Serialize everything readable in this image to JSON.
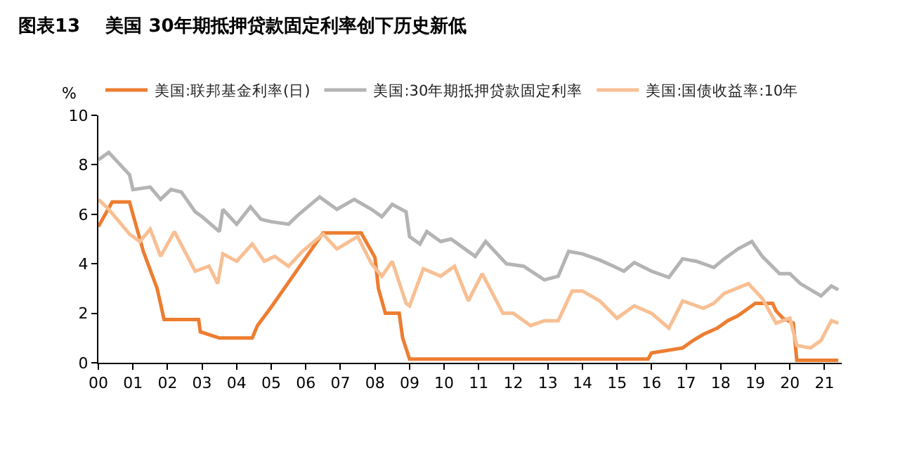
{
  "chart_data": {
    "type": "line",
    "title": "图表13    美国 30年期抵押贷款固定利率创下历史新低",
    "ylabel": "%",
    "ylim": [
      0,
      10
    ],
    "yticks": [
      0,
      2,
      4,
      6,
      8,
      10
    ],
    "xlim": [
      2000,
      2021.5
    ],
    "xticks": [
      {
        "value": 2000,
        "label": "00"
      },
      {
        "value": 2001,
        "label": "01"
      },
      {
        "value": 2002,
        "label": "02"
      },
      {
        "value": 2003,
        "label": "03"
      },
      {
        "value": 2004,
        "label": "04"
      },
      {
        "value": 2005,
        "label": "05"
      },
      {
        "value": 2006,
        "label": "06"
      },
      {
        "value": 2007,
        "label": "07"
      },
      {
        "value": 2008,
        "label": "08"
      },
      {
        "value": 2009,
        "label": "09"
      },
      {
        "value": 2010,
        "label": "10"
      },
      {
        "value": 2011,
        "label": "11"
      },
      {
        "value": 2012,
        "label": "12"
      },
      {
        "value": 2013,
        "label": "13"
      },
      {
        "value": 2014,
        "label": "14"
      },
      {
        "value": 2015,
        "label": "15"
      },
      {
        "value": 2016,
        "label": "16"
      },
      {
        "value": 2017,
        "label": "17"
      },
      {
        "value": 2018,
        "label": "18"
      },
      {
        "value": 2019,
        "label": "19"
      },
      {
        "value": 2020,
        "label": "20"
      },
      {
        "value": 2021,
        "label": "21"
      }
    ],
    "legend": "top",
    "marker": "none",
    "line_style": "solid",
    "series": [
      {
        "name": "美国:联邦基金利率(日)",
        "color": "#ed7d31",
        "x": [
          2000.0,
          2000.4,
          2000.9,
          2001.0,
          2001.3,
          2001.7,
          2001.9,
          2002.9,
          2002.95,
          2003.5,
          2004.45,
          2004.6,
          2005.0,
          2005.5,
          2006.0,
          2006.5,
          2007.6,
          2007.8,
          2008.0,
          2008.1,
          2008.3,
          2008.7,
          2008.8,
          2009.0,
          2015.9,
          2016.0,
          2016.9,
          2017.2,
          2017.5,
          2017.9,
          2018.2,
          2018.5,
          2018.8,
          2019.0,
          2019.5,
          2019.6,
          2019.8,
          2020.1,
          2020.2,
          2021.4
        ],
        "values": [
          5.5,
          6.5,
          6.5,
          6.0,
          4.5,
          3.0,
          1.75,
          1.75,
          1.25,
          1.0,
          1.0,
          1.5,
          2.25,
          3.25,
          4.25,
          5.25,
          5.25,
          4.75,
          4.25,
          3.0,
          2.0,
          2.0,
          1.0,
          0.15,
          0.15,
          0.4,
          0.6,
          0.9,
          1.15,
          1.4,
          1.7,
          1.9,
          2.2,
          2.4,
          2.4,
          2.1,
          1.8,
          1.6,
          0.1,
          0.1
        ]
      },
      {
        "name": "美国:30年期抵押贷款固定利率",
        "color": "#b4b4b4",
        "x": [
          2000.0,
          2000.3,
          2000.5,
          2000.9,
          2001.0,
          2001.5,
          2001.8,
          2002.1,
          2002.4,
          2002.8,
          2003.0,
          2003.5,
          2003.6,
          2004.0,
          2004.4,
          2004.7,
          2005.0,
          2005.5,
          2005.8,
          2006.4,
          2006.9,
          2007.4,
          2007.9,
          2008.2,
          2008.5,
          2008.9,
          2009.0,
          2009.3,
          2009.5,
          2009.9,
          2010.2,
          2010.9,
          2011.2,
          2011.8,
          2012.3,
          2012.9,
          2013.3,
          2013.6,
          2014.0,
          2014.5,
          2014.9,
          2015.2,
          2015.5,
          2016.0,
          2016.5,
          2016.9,
          2017.3,
          2017.8,
          2018.1,
          2018.5,
          2018.9,
          2019.2,
          2019.7,
          2020.0,
          2020.3,
          2020.9,
          2021.2,
          2021.4
        ],
        "values": [
          8.2,
          8.5,
          8.2,
          7.6,
          7.0,
          7.1,
          6.6,
          7.0,
          6.9,
          6.1,
          5.9,
          5.3,
          6.2,
          5.6,
          6.3,
          5.8,
          5.7,
          5.6,
          6.0,
          6.7,
          6.2,
          6.6,
          6.2,
          5.9,
          6.4,
          6.1,
          5.1,
          4.8,
          5.3,
          4.9,
          5.0,
          4.3,
          4.9,
          4.0,
          3.9,
          3.35,
          3.5,
          4.5,
          4.4,
          4.15,
          3.9,
          3.7,
          4.05,
          3.7,
          3.45,
          4.2,
          4.1,
          3.85,
          4.2,
          4.6,
          4.9,
          4.3,
          3.6,
          3.6,
          3.2,
          2.7,
          3.1,
          2.95
        ]
      },
      {
        "name": "美国:国债收益率:10年",
        "color": "#f8bf93",
        "x": [
          2000.0,
          2000.3,
          2000.9,
          2001.2,
          2001.5,
          2001.8,
          2002.2,
          2002.8,
          2003.2,
          2003.45,
          2003.6,
          2004.0,
          2004.45,
          2004.8,
          2005.1,
          2005.5,
          2005.9,
          2006.5,
          2006.9,
          2007.5,
          2007.9,
          2008.2,
          2008.5,
          2008.9,
          2009.0,
          2009.4,
          2009.9,
          2010.3,
          2010.7,
          2011.1,
          2011.7,
          2012.0,
          2012.5,
          2012.9,
          2013.3,
          2013.7,
          2014.0,
          2014.5,
          2015.0,
          2015.5,
          2016.0,
          2016.5,
          2016.9,
          2017.5,
          2017.8,
          2018.1,
          2018.8,
          2019.2,
          2019.6,
          2020.0,
          2020.2,
          2020.6,
          2020.9,
          2021.2,
          2021.4
        ],
        "values": [
          6.6,
          6.2,
          5.2,
          4.9,
          5.4,
          4.3,
          5.3,
          3.7,
          3.9,
          3.2,
          4.4,
          4.1,
          4.8,
          4.1,
          4.3,
          3.9,
          4.5,
          5.2,
          4.6,
          5.1,
          4.0,
          3.5,
          4.1,
          2.4,
          2.3,
          3.8,
          3.5,
          3.9,
          2.5,
          3.6,
          2.0,
          2.0,
          1.5,
          1.7,
          1.7,
          2.9,
          2.9,
          2.5,
          1.8,
          2.3,
          2.0,
          1.4,
          2.5,
          2.2,
          2.4,
          2.8,
          3.2,
          2.6,
          1.6,
          1.8,
          0.7,
          0.6,
          0.9,
          1.7,
          1.6
        ]
      }
    ]
  }
}
